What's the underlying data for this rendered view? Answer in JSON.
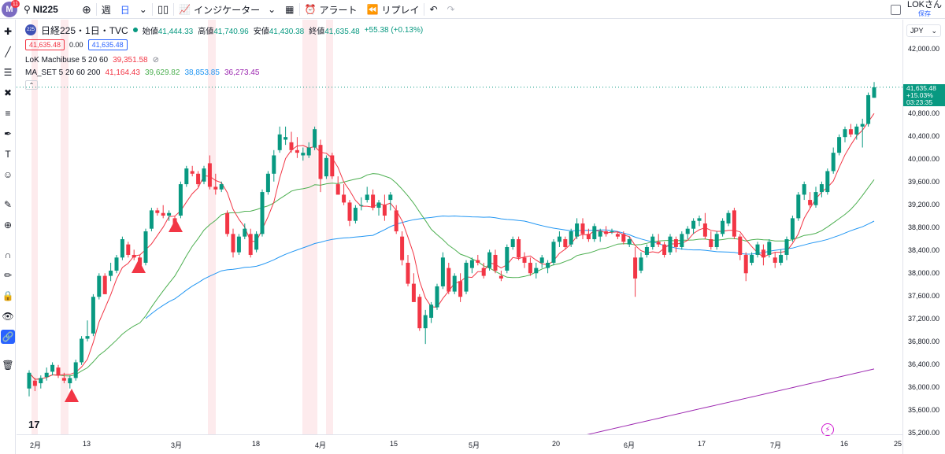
{
  "topbar": {
    "logo_text": "M",
    "notification_count": "11",
    "symbol": "NI225",
    "interval_week": "週",
    "interval_day": "日",
    "indicators_label": "インジケーター",
    "alert_label": "アラート",
    "replay_label": "リプレイ",
    "user_name": "LOKさん",
    "save_label": "保存"
  },
  "legend": {
    "symbol_badge": "225",
    "symbol_title": "日経225・1日・TVC",
    "open_label": "始値",
    "open_value": "41,444.33",
    "high_label": "高値",
    "high_value": "41,740.96",
    "low_label": "安値",
    "low_value": "41,430.38",
    "close_label": "終値",
    "close_value": "41,635.48",
    "change": "+55.38 (+0.13%)",
    "bid": "41,635.48",
    "spread": "0.00",
    "ask": "41,635.48",
    "ind1_name": "LoK Machibuse 5 20 60",
    "ind1_value": "39,351.58",
    "ind2_name": "MA_SET 5 20 60 200",
    "ind2_values": [
      "41,164.43",
      "39,629.82",
      "38,853.85",
      "36,273.45"
    ],
    "collapse_icon": "chevron-up-icon"
  },
  "price_axis": {
    "currency": "JPY",
    "labels": [
      "42,000.00",
      "41,200.00",
      "40,800.00",
      "40,400.00",
      "40,000.00",
      "39,600.00",
      "39,200.00",
      "38,800.00",
      "38,400.00",
      "38,000.00",
      "37,600.00",
      "37,200.00",
      "36,800.00",
      "36,400.00",
      "36,000.00",
      "35,600.00",
      "35,200.00"
    ],
    "current_price": "41,635.48",
    "current_change": "+15.03%",
    "current_countdown": "03:23:35"
  },
  "time_axis": {
    "labels": [
      "2月",
      "13",
      "3月",
      "18",
      "4月",
      "15",
      "5月",
      "20",
      "6月",
      "17",
      "7月",
      "16",
      "25"
    ]
  },
  "colors": {
    "up": "#089981",
    "down": "#f23645",
    "ma5": "#f23645",
    "ma20": "#4caf50",
    "ma60": "#2196f3",
    "ma200": "#9c27b0",
    "signal": "#f23645",
    "highlight": "#fde6e8"
  },
  "chart_data": {
    "type": "candlestick",
    "symbol": "日経225",
    "interval": "1日",
    "ylim": [
      35100,
      42400
    ],
    "candles": [
      [
        35900,
        36250,
        35750,
        36200
      ],
      [
        36050,
        36100,
        35850,
        35950
      ],
      [
        36000,
        36150,
        35900,
        36100
      ],
      [
        36120,
        36300,
        36050,
        36200
      ],
      [
        36220,
        36400,
        36150,
        36350
      ],
      [
        36300,
        36350,
        36100,
        36150
      ],
      [
        36100,
        36200,
        36000,
        36050
      ],
      [
        36000,
        36150,
        35900,
        36100
      ],
      [
        36100,
        36450,
        36050,
        36400
      ],
      [
        36400,
        36900,
        36350,
        36850
      ],
      [
        36850,
        37200,
        36800,
        36900
      ],
      [
        36950,
        37700,
        36900,
        37650
      ],
      [
        37650,
        38100,
        37600,
        38050
      ],
      [
        38050,
        38100,
        37700,
        37700
      ],
      [
        38050,
        38300,
        37950,
        38150
      ],
      [
        38150,
        38450,
        38100,
        38400
      ],
      [
        38400,
        38800,
        38350,
        38750
      ],
      [
        38650,
        38700,
        38400,
        38450
      ],
      [
        38450,
        38550,
        38350,
        38400
      ],
      [
        38400,
        38450,
        38200,
        38250
      ],
      [
        38300,
        38950,
        38250,
        38900
      ],
      [
        38950,
        39350,
        38900,
        39300
      ],
      [
        39300,
        39350,
        39200,
        39250
      ],
      [
        39250,
        39400,
        39150,
        39200
      ],
      [
        39200,
        39300,
        39100,
        39250
      ],
      [
        39150,
        39200,
        38900,
        38950
      ],
      [
        39200,
        39850,
        39150,
        39800
      ],
      [
        39800,
        40150,
        39750,
        40100
      ],
      [
        40050,
        40150,
        39950,
        40000
      ],
      [
        40000,
        40050,
        39750,
        39800
      ],
      [
        39850,
        40150,
        39800,
        40100
      ],
      [
        40200,
        40350,
        39700,
        39750
      ],
      [
        39750,
        40000,
        39600,
        39700
      ],
      [
        39700,
        39850,
        39650,
        39800
      ],
      [
        39250,
        39300,
        38800,
        38850
      ],
      [
        38850,
        38950,
        38400,
        38500
      ],
      [
        38500,
        38850,
        38450,
        38800
      ],
      [
        38800,
        39050,
        38750,
        38950
      ],
      [
        38850,
        38950,
        38400,
        38450
      ],
      [
        38550,
        38900,
        38500,
        38850
      ],
      [
        38850,
        39700,
        38800,
        39650
      ],
      [
        39650,
        40050,
        39600,
        40000
      ],
      [
        40000,
        40450,
        39850,
        40350
      ],
      [
        40450,
        40900,
        40400,
        40750
      ],
      [
        40650,
        40900,
        40550,
        40700
      ],
      [
        40600,
        40800,
        40400,
        40450
      ],
      [
        40450,
        40700,
        40300,
        40400
      ],
      [
        40350,
        40500,
        40250,
        40400
      ],
      [
        40350,
        40600,
        40300,
        40500
      ],
      [
        40500,
        40900,
        40450,
        40850
      ],
      [
        40550,
        40650,
        39650,
        39900
      ],
      [
        39950,
        40350,
        39900,
        40300
      ],
      [
        40350,
        40400,
        39900,
        39950
      ],
      [
        39800,
        39950,
        39600,
        39600
      ],
      [
        39600,
        39800,
        39400,
        39450
      ],
      [
        39450,
        39500,
        39000,
        39100
      ],
      [
        39100,
        39400,
        39050,
        39350
      ],
      [
        39400,
        39550,
        39300,
        39400
      ],
      [
        39500,
        39750,
        39450,
        39600
      ],
      [
        39600,
        39700,
        39300,
        39350
      ],
      [
        39350,
        39500,
        39200,
        39450
      ],
      [
        39400,
        39600,
        39100,
        39200
      ],
      [
        39500,
        39650,
        39300,
        39600
      ],
      [
        39300,
        39400,
        38850,
        38900
      ],
      [
        38800,
        38900,
        38250,
        38350
      ],
      [
        38300,
        38450,
        37850,
        37900
      ],
      [
        37900,
        38100,
        37550,
        37550
      ],
      [
        37650,
        37700,
        37000,
        37050
      ],
      [
        37050,
        37400,
        36750,
        37300
      ],
      [
        37250,
        37550,
        37150,
        37500
      ],
      [
        37450,
        37900,
        37400,
        37850
      ],
      [
        37850,
        38500,
        37800,
        38400
      ],
      [
        38200,
        38300,
        37700,
        37750
      ],
      [
        37750,
        38100,
        37700,
        38050
      ],
      [
        37950,
        38100,
        37550,
        37650
      ],
      [
        37750,
        38350,
        37700,
        38300
      ],
      [
        38200,
        38400,
        38100,
        38350
      ],
      [
        38350,
        38450,
        38250,
        38300
      ],
      [
        38200,
        38300,
        38000,
        38050
      ],
      [
        38200,
        38550,
        38150,
        38500
      ],
      [
        38450,
        38550,
        38100,
        38150
      ],
      [
        38050,
        38150,
        37950,
        38000
      ],
      [
        38150,
        38650,
        38100,
        38600
      ],
      [
        38600,
        38800,
        38550,
        38750
      ],
      [
        38750,
        38800,
        38350,
        38400
      ],
      [
        38400,
        38500,
        38200,
        38300
      ],
      [
        38300,
        38400,
        38050,
        38100
      ],
      [
        38100,
        38300,
        38000,
        38200
      ],
      [
        38300,
        38450,
        38200,
        38400
      ],
      [
        38200,
        38350,
        38100,
        38300
      ],
      [
        38300,
        38750,
        38250,
        38700
      ],
      [
        38700,
        38900,
        38600,
        38800
      ],
      [
        38750,
        38800,
        38550,
        38600
      ],
      [
        38650,
        38950,
        38600,
        38900
      ],
      [
        38800,
        39150,
        38750,
        39050
      ],
      [
        39050,
        39150,
        38750,
        38850
      ],
      [
        38850,
        38950,
        38700,
        38750
      ],
      [
        38750,
        39050,
        38700,
        39000
      ],
      [
        38800,
        38950,
        38700,
        38900
      ],
      [
        38900,
        39000,
        38800,
        38850
      ],
      [
        38900,
        38950,
        38850,
        38900
      ],
      [
        38850,
        38900,
        38750,
        38800
      ],
      [
        38850,
        38900,
        38650,
        38700
      ],
      [
        38650,
        38800,
        38600,
        38750
      ],
      [
        38400,
        38600,
        37650,
        38000
      ],
      [
        38150,
        38500,
        38100,
        38400
      ],
      [
        38450,
        38650,
        38400,
        38600
      ],
      [
        38600,
        38850,
        38550,
        38800
      ],
      [
        38700,
        38850,
        38600,
        38650
      ],
      [
        38650,
        38700,
        38400,
        38450
      ],
      [
        38500,
        38850,
        38450,
        38800
      ],
      [
        38750,
        38800,
        38500,
        38600
      ],
      [
        38600,
        38900,
        38550,
        38850
      ],
      [
        38850,
        39000,
        38750,
        38950
      ],
      [
        38950,
        39150,
        38850,
        39100
      ],
      [
        39100,
        39200,
        39000,
        39150
      ],
      [
        39050,
        39250,
        38750,
        38800
      ],
      [
        38750,
        38900,
        38550,
        38600
      ],
      [
        38600,
        38900,
        38550,
        38850
      ],
      [
        38850,
        39150,
        38800,
        39100
      ],
      [
        39050,
        39300,
        39000,
        39250
      ],
      [
        39300,
        39350,
        38750,
        38800
      ],
      [
        38800,
        38850,
        38350,
        38450
      ],
      [
        38450,
        38500,
        37950,
        38100
      ],
      [
        38300,
        38500,
        38250,
        38450
      ],
      [
        38450,
        38700,
        38400,
        38650
      ],
      [
        38550,
        38650,
        38250,
        38400
      ],
      [
        38450,
        38750,
        38400,
        38700
      ],
      [
        38400,
        38500,
        38200,
        38300
      ],
      [
        38300,
        38550,
        38250,
        38450
      ],
      [
        38450,
        38800,
        38350,
        38750
      ],
      [
        38750,
        39200,
        38700,
        39150
      ],
      [
        39150,
        39650,
        39100,
        39600
      ],
      [
        39600,
        39850,
        39500,
        39800
      ],
      [
        39500,
        39650,
        39350,
        39400
      ],
      [
        39400,
        39750,
        39350,
        39650
      ],
      [
        39650,
        39850,
        39550,
        39800
      ],
      [
        39650,
        40100,
        39600,
        40050
      ],
      [
        40050,
        40500,
        40000,
        40400
      ],
      [
        40400,
        40750,
        40350,
        40700
      ],
      [
        40700,
        40900,
        40600,
        40850
      ],
      [
        40850,
        40950,
        40700,
        40750
      ],
      [
        40750,
        40950,
        40650,
        40900
      ],
      [
        40900,
        41050,
        40500,
        40950
      ],
      [
        40950,
        41550,
        40900,
        41500
      ],
      [
        41450,
        41750,
        41450,
        41650
      ]
    ],
    "indicators": [
      {
        "name": "MA 5",
        "value": 41164.43
      },
      {
        "name": "MA 20",
        "value": 39629.82
      },
      {
        "name": "MA 60",
        "value": 38853.85
      },
      {
        "name": "MA 200",
        "value": 36273.45
      },
      {
        "name": "LoK Machibuse 5 20 60",
        "value": 39351.58
      }
    ]
  }
}
